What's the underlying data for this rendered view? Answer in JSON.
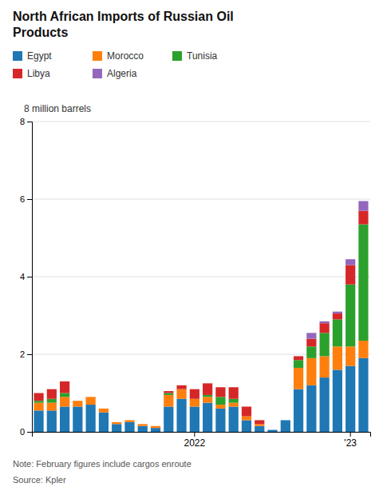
{
  "chart_data": {
    "type": "bar",
    "stacked": true,
    "title": "North African Imports of Russian Oil\nProducts",
    "ylabel": "8 million barrels",
    "annotations": [
      "Note: February figures include cargos enroute",
      "Source: Kpler"
    ],
    "categories": [
      null,
      null,
      null,
      null,
      null,
      null,
      null,
      null,
      null,
      null,
      null,
      null,
      "2022",
      null,
      null,
      null,
      null,
      null,
      null,
      null,
      null,
      null,
      null,
      null,
      "'23",
      null
    ],
    "series": [
      {
        "name": "Egypt",
        "values": [
          0.55,
          0.55,
          0.65,
          0.65,
          0.7,
          0.5,
          0.2,
          0.25,
          0.15,
          0.1,
          0.65,
          0.85,
          0.65,
          0.75,
          0.6,
          0.65,
          0.3,
          0.15,
          0.05,
          0.3,
          1.1,
          1.2,
          1.4,
          1.6,
          1.7,
          1.9
        ]
      },
      {
        "name": "Morocco",
        "values": [
          0.2,
          0.2,
          0.25,
          0.15,
          0.2,
          0.1,
          0.05,
          0.05,
          0.05,
          0.05,
          0.3,
          0.25,
          0.2,
          0.15,
          0.1,
          0.1,
          0.1,
          0.05,
          0.0,
          0.0,
          0.55,
          0.7,
          0.55,
          0.6,
          0.5,
          0.45
        ]
      },
      {
        "name": "Tunisia",
        "values": [
          0.05,
          0.1,
          0.1,
          0.0,
          0.0,
          0.0,
          0.0,
          0.0,
          0.0,
          0.0,
          0.05,
          0.0,
          0.0,
          0.05,
          0.2,
          0.1,
          0.0,
          0.0,
          0.0,
          0.0,
          0.2,
          0.3,
          0.6,
          0.7,
          1.6,
          3.0
        ]
      },
      {
        "name": "Libya",
        "values": [
          0.2,
          0.25,
          0.3,
          0.0,
          0.0,
          0.0,
          0.0,
          0.0,
          0.0,
          0.0,
          0.05,
          0.1,
          0.25,
          0.3,
          0.25,
          0.3,
          0.25,
          0.1,
          0.0,
          0.0,
          0.1,
          0.2,
          0.25,
          0.15,
          0.5,
          0.35
        ]
      },
      {
        "name": "Algeria",
        "values": [
          0.0,
          0.0,
          0.0,
          0.0,
          0.0,
          0.0,
          0.0,
          0.0,
          0.0,
          0.0,
          0.0,
          0.0,
          0.0,
          0.0,
          0.0,
          0.0,
          0.0,
          0.0,
          0.0,
          0.0,
          0.0,
          0.15,
          0.05,
          0.05,
          0.15,
          0.25
        ]
      }
    ],
    "ylim": [
      0,
      8
    ],
    "yticks": [
      0,
      2,
      4,
      6,
      8
    ],
    "grid": true,
    "legend": "top-left"
  }
}
